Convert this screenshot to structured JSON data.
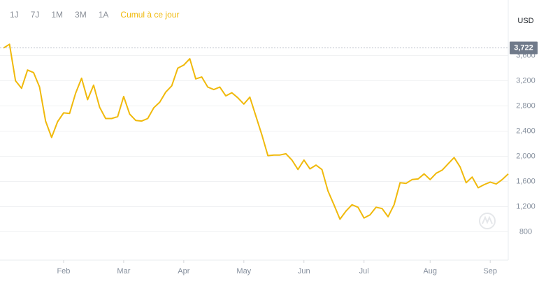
{
  "toolbar": {
    "tabs": [
      "1J",
      "7J",
      "1M",
      "3M",
      "1A",
      "Cumul à ce jour"
    ],
    "active": 5
  },
  "chart_data": {
    "type": "line",
    "unit": "USD",
    "color": "#f0b90b",
    "grid": true,
    "categories": [
      null,
      null,
      null,
      null,
      null,
      null,
      null,
      null,
      null,
      null,
      "Feb",
      null,
      null,
      null,
      null,
      null,
      null,
      null,
      null,
      null,
      "Mar",
      null,
      null,
      null,
      null,
      null,
      null,
      null,
      null,
      null,
      "Apr",
      null,
      null,
      null,
      null,
      null,
      null,
      null,
      null,
      null,
      "May",
      null,
      null,
      null,
      null,
      null,
      null,
      null,
      null,
      null,
      "Jun",
      null,
      null,
      null,
      null,
      null,
      null,
      null,
      null,
      null,
      "Jul",
      null,
      null,
      null,
      null,
      null,
      null,
      null,
      null,
      null,
      null,
      "Aug",
      null,
      null,
      null,
      null,
      null,
      null,
      null,
      null,
      null,
      "Sep",
      null,
      null,
      null
    ],
    "values": [
      3720,
      3780,
      3200,
      3080,
      3370,
      3330,
      3100,
      2560,
      2300,
      2550,
      2690,
      2680,
      3000,
      3240,
      2900,
      3130,
      2780,
      2600,
      2600,
      2630,
      2950,
      2670,
      2570,
      2560,
      2600,
      2770,
      2860,
      3020,
      3120,
      3400,
      3450,
      3550,
      3230,
      3260,
      3100,
      3060,
      3100,
      2960,
      3010,
      2930,
      2830,
      2940,
      2640,
      2340,
      2010,
      2020,
      2020,
      2040,
      1940,
      1790,
      1940,
      1800,
      1860,
      1790,
      1450,
      1230,
      1000,
      1130,
      1230,
      1190,
      1020,
      1070,
      1190,
      1170,
      1040,
      1230,
      1580,
      1570,
      1630,
      1640,
      1720,
      1630,
      1730,
      1780,
      1880,
      1980,
      1830,
      1580,
      1670,
      1500,
      1550,
      1590,
      1560,
      1630,
      1720
    ],
    "ylim": [
      350,
      3900
    ],
    "yticks": [
      800,
      {
        "value": 1200,
        "label": "1,200"
      },
      {
        "value": 1600,
        "label": "1,600"
      },
      {
        "value": 2000,
        "label": "2,000"
      },
      {
        "value": 2400,
        "label": "2,400"
      },
      {
        "value": 2800,
        "label": "2,800"
      },
      {
        "value": 3200,
        "label": "3,200"
      },
      {
        "value": 3600,
        "label": "3,600"
      }
    ],
    "price_marker": {
      "value": 3722,
      "label": "3,722"
    }
  }
}
